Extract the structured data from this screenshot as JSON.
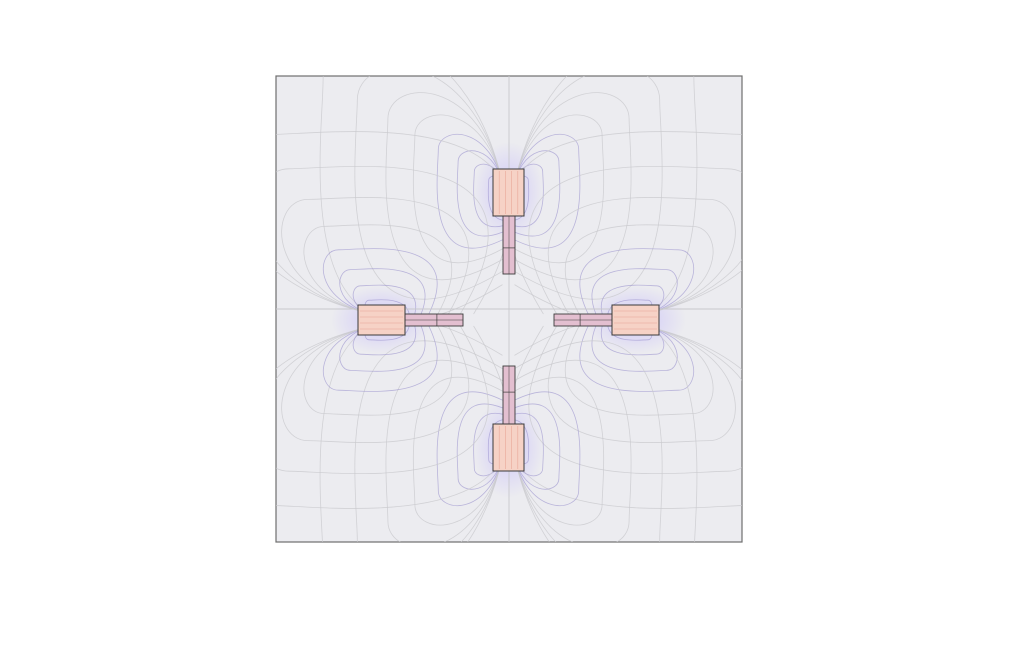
{
  "view": {
    "background_color": "#ffffff",
    "domain_fill": "#ececf0",
    "domain_stroke": "#6e6e6e",
    "field_line_color": "#8f86c8",
    "field_line_outer_color": "#c8c8cc",
    "glow_inner_color": "#6ff2c8",
    "glow_outer_color": "#b6a8ff",
    "magnet_fill": "#f6d2c6",
    "magnet_shaft_fill": "#e3bfd0",
    "magnet_stroke": "#3a3a3a"
  },
  "domain": {
    "shape": "square",
    "has_center_crosshair": true
  },
  "magnets": [
    {
      "id": "top",
      "orientation": "down"
    },
    {
      "id": "right",
      "orientation": "left"
    },
    {
      "id": "bottom",
      "orientation": "up"
    },
    {
      "id": "left",
      "orientation": "right"
    }
  ]
}
